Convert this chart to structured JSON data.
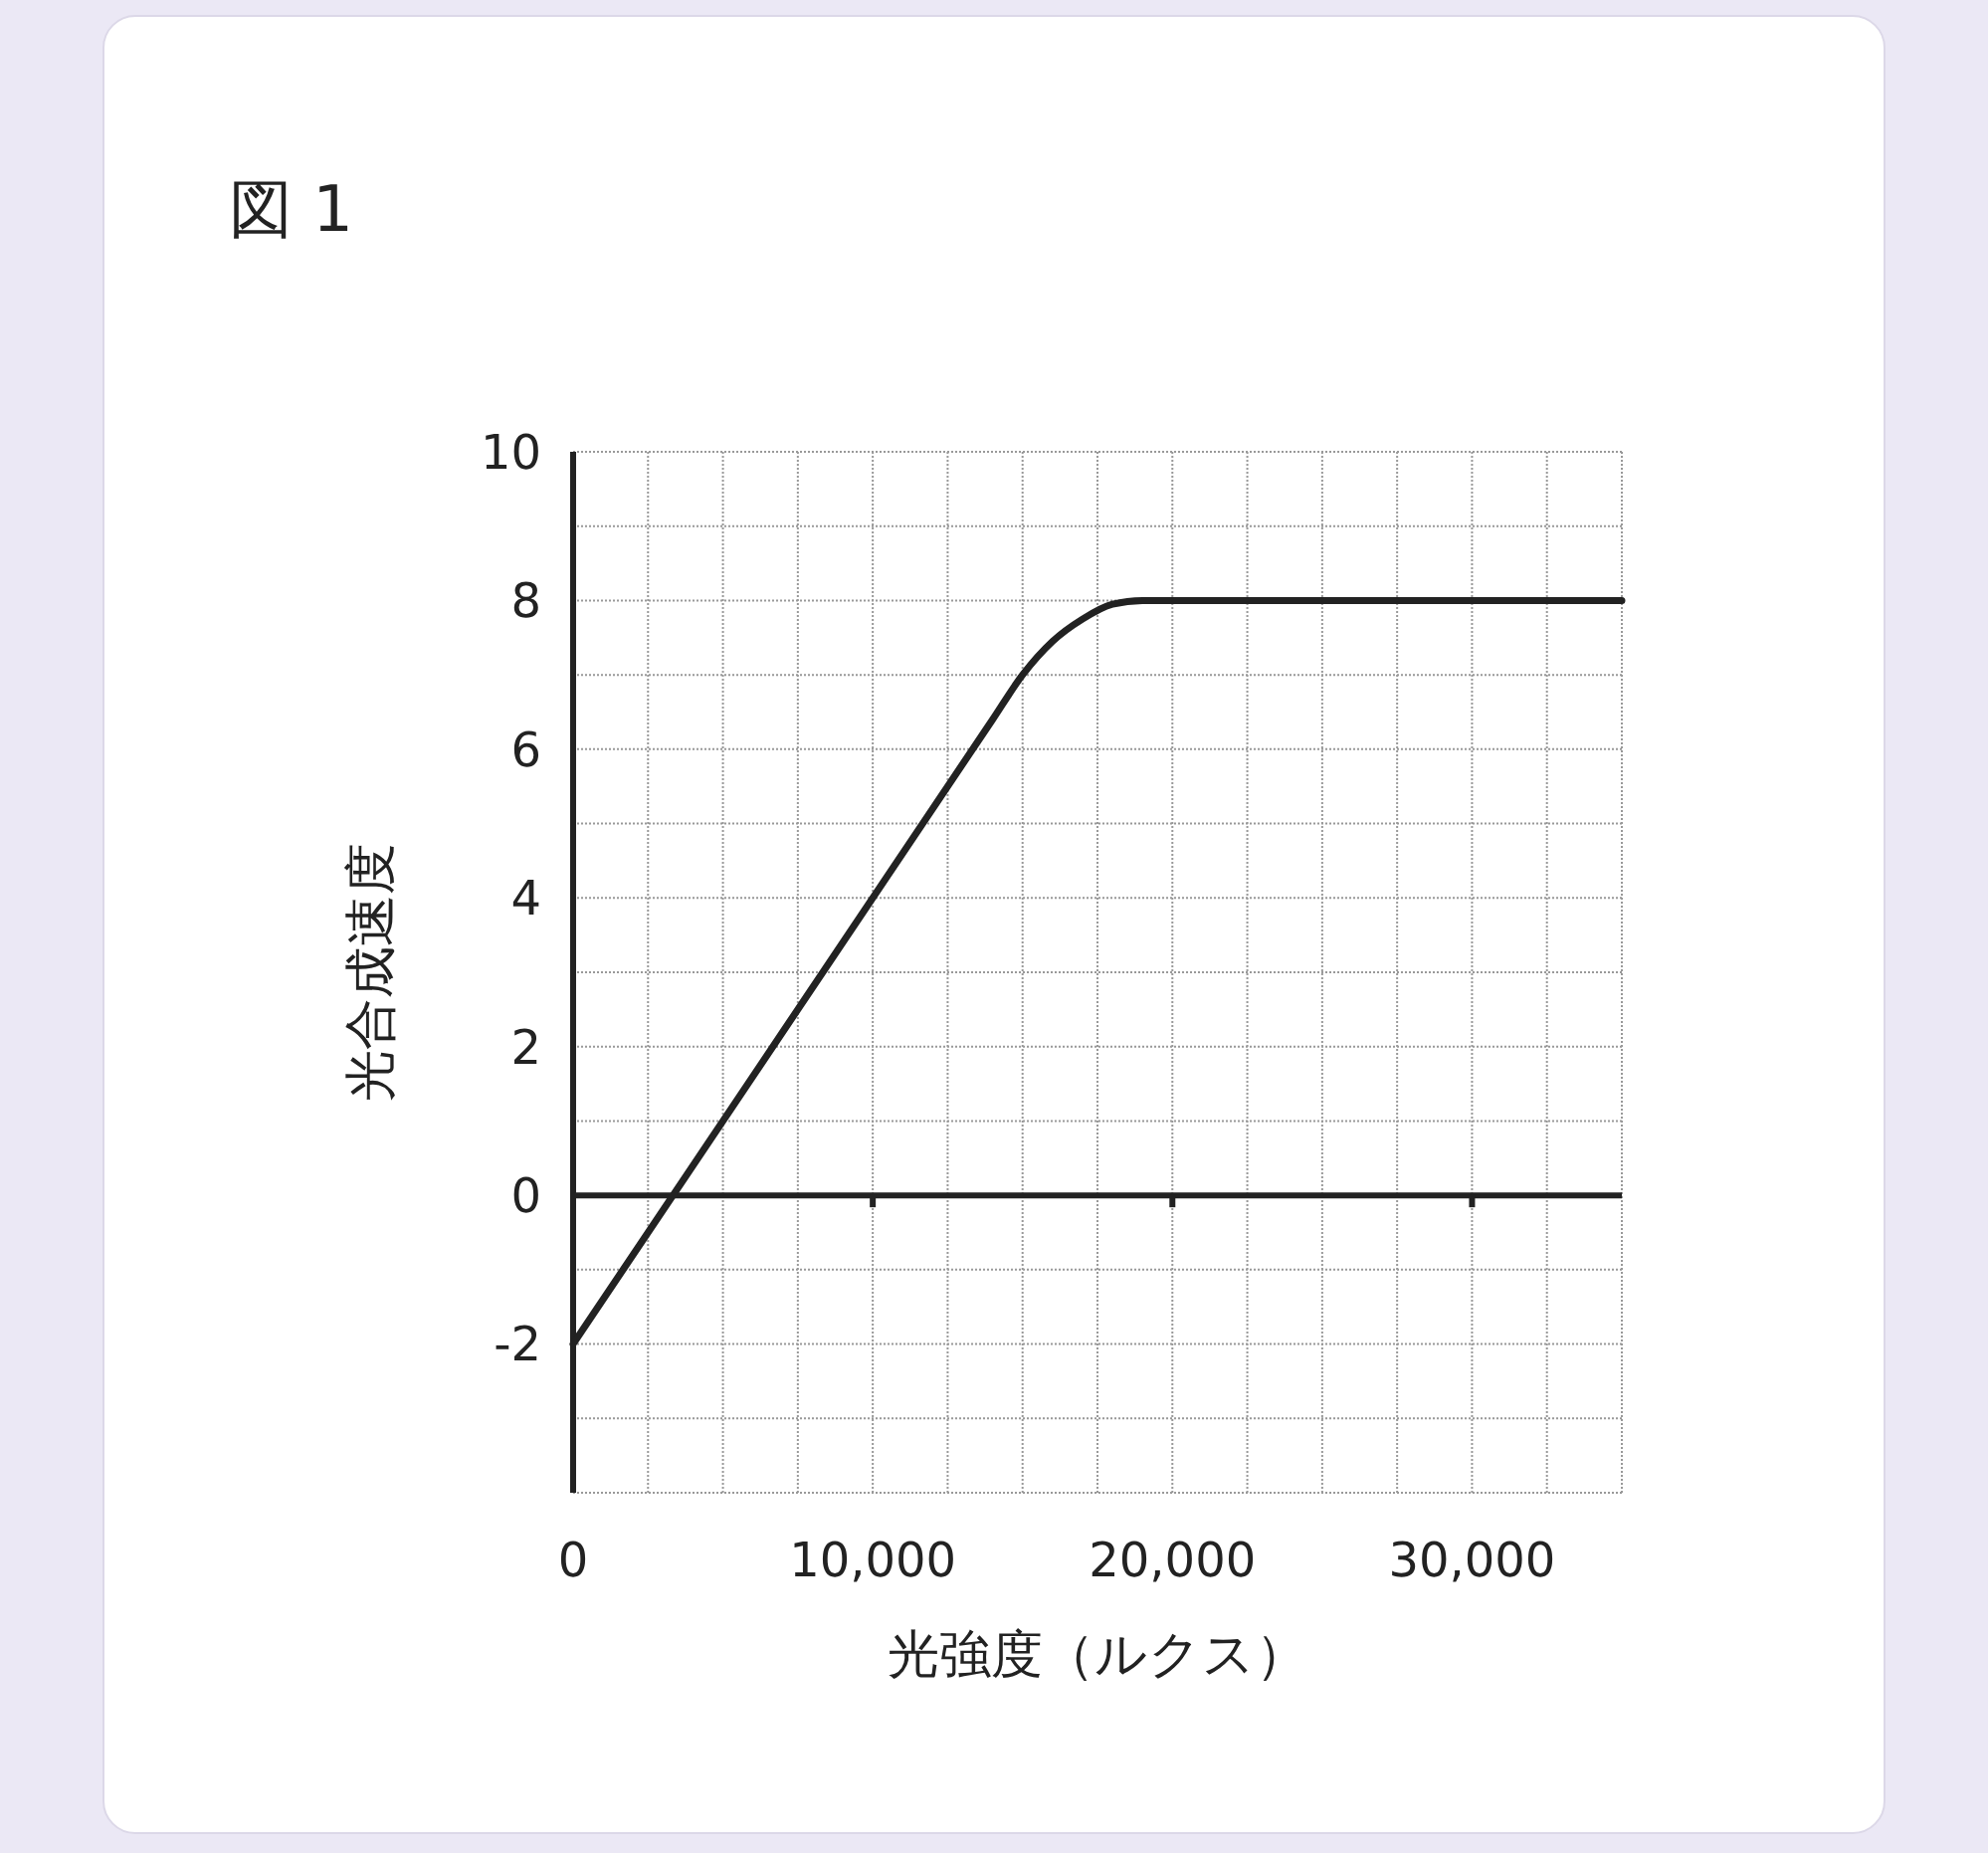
{
  "chart_data": {
    "type": "line",
    "title": "図 1",
    "xlabel": "光強度（ルクス）",
    "ylabel": "光合成速度",
    "x": [
      0,
      14000,
      15000,
      16000,
      17000,
      18000,
      19000,
      20000,
      35000
    ],
    "series": [
      {
        "color": "#222222",
        "values": [
          -2,
          6.4,
          7,
          7.45,
          7.75,
          7.95,
          8,
          8,
          8
        ]
      }
    ],
    "xlim": [
      0,
      35000
    ],
    "xticks": [
      0,
      {
        "value": 2500,
        "label": null
      },
      {
        "value": 5000,
        "label": null
      },
      {
        "value": 7500,
        "label": null
      },
      {
        "value": 10000,
        "label": "10,000"
      },
      {
        "value": 12500,
        "label": null
      },
      {
        "value": 15000,
        "label": null
      },
      {
        "value": 17500,
        "label": null
      },
      {
        "value": 20000,
        "label": "20,000"
      },
      {
        "value": 22500,
        "label": null
      },
      {
        "value": 25000,
        "label": null
      },
      {
        "value": 27500,
        "label": null
      },
      {
        "value": 30000,
        "label": "30,000"
      },
      {
        "value": 32500,
        "label": null
      },
      {
        "value": 35000,
        "label": null
      }
    ],
    "ylim": [
      -4,
      10
    ],
    "yticks": [
      {
        "value": -4,
        "label": null
      },
      {
        "value": -3,
        "label": null
      },
      -2,
      {
        "value": -1,
        "label": null
      },
      0,
      {
        "value": 1,
        "label": null
      },
      2,
      {
        "value": 3,
        "label": null
      },
      4,
      {
        "value": 5,
        "label": null
      },
      6,
      {
        "value": 7,
        "label": null
      },
      8,
      {
        "value": 9,
        "label": null
      },
      10
    ],
    "grid": true,
    "marker": "none",
    "line_style": "solid",
    "ref_lines": [
      {
        "axis": "y",
        "value": 0,
        "color": "#222222"
      }
    ]
  }
}
